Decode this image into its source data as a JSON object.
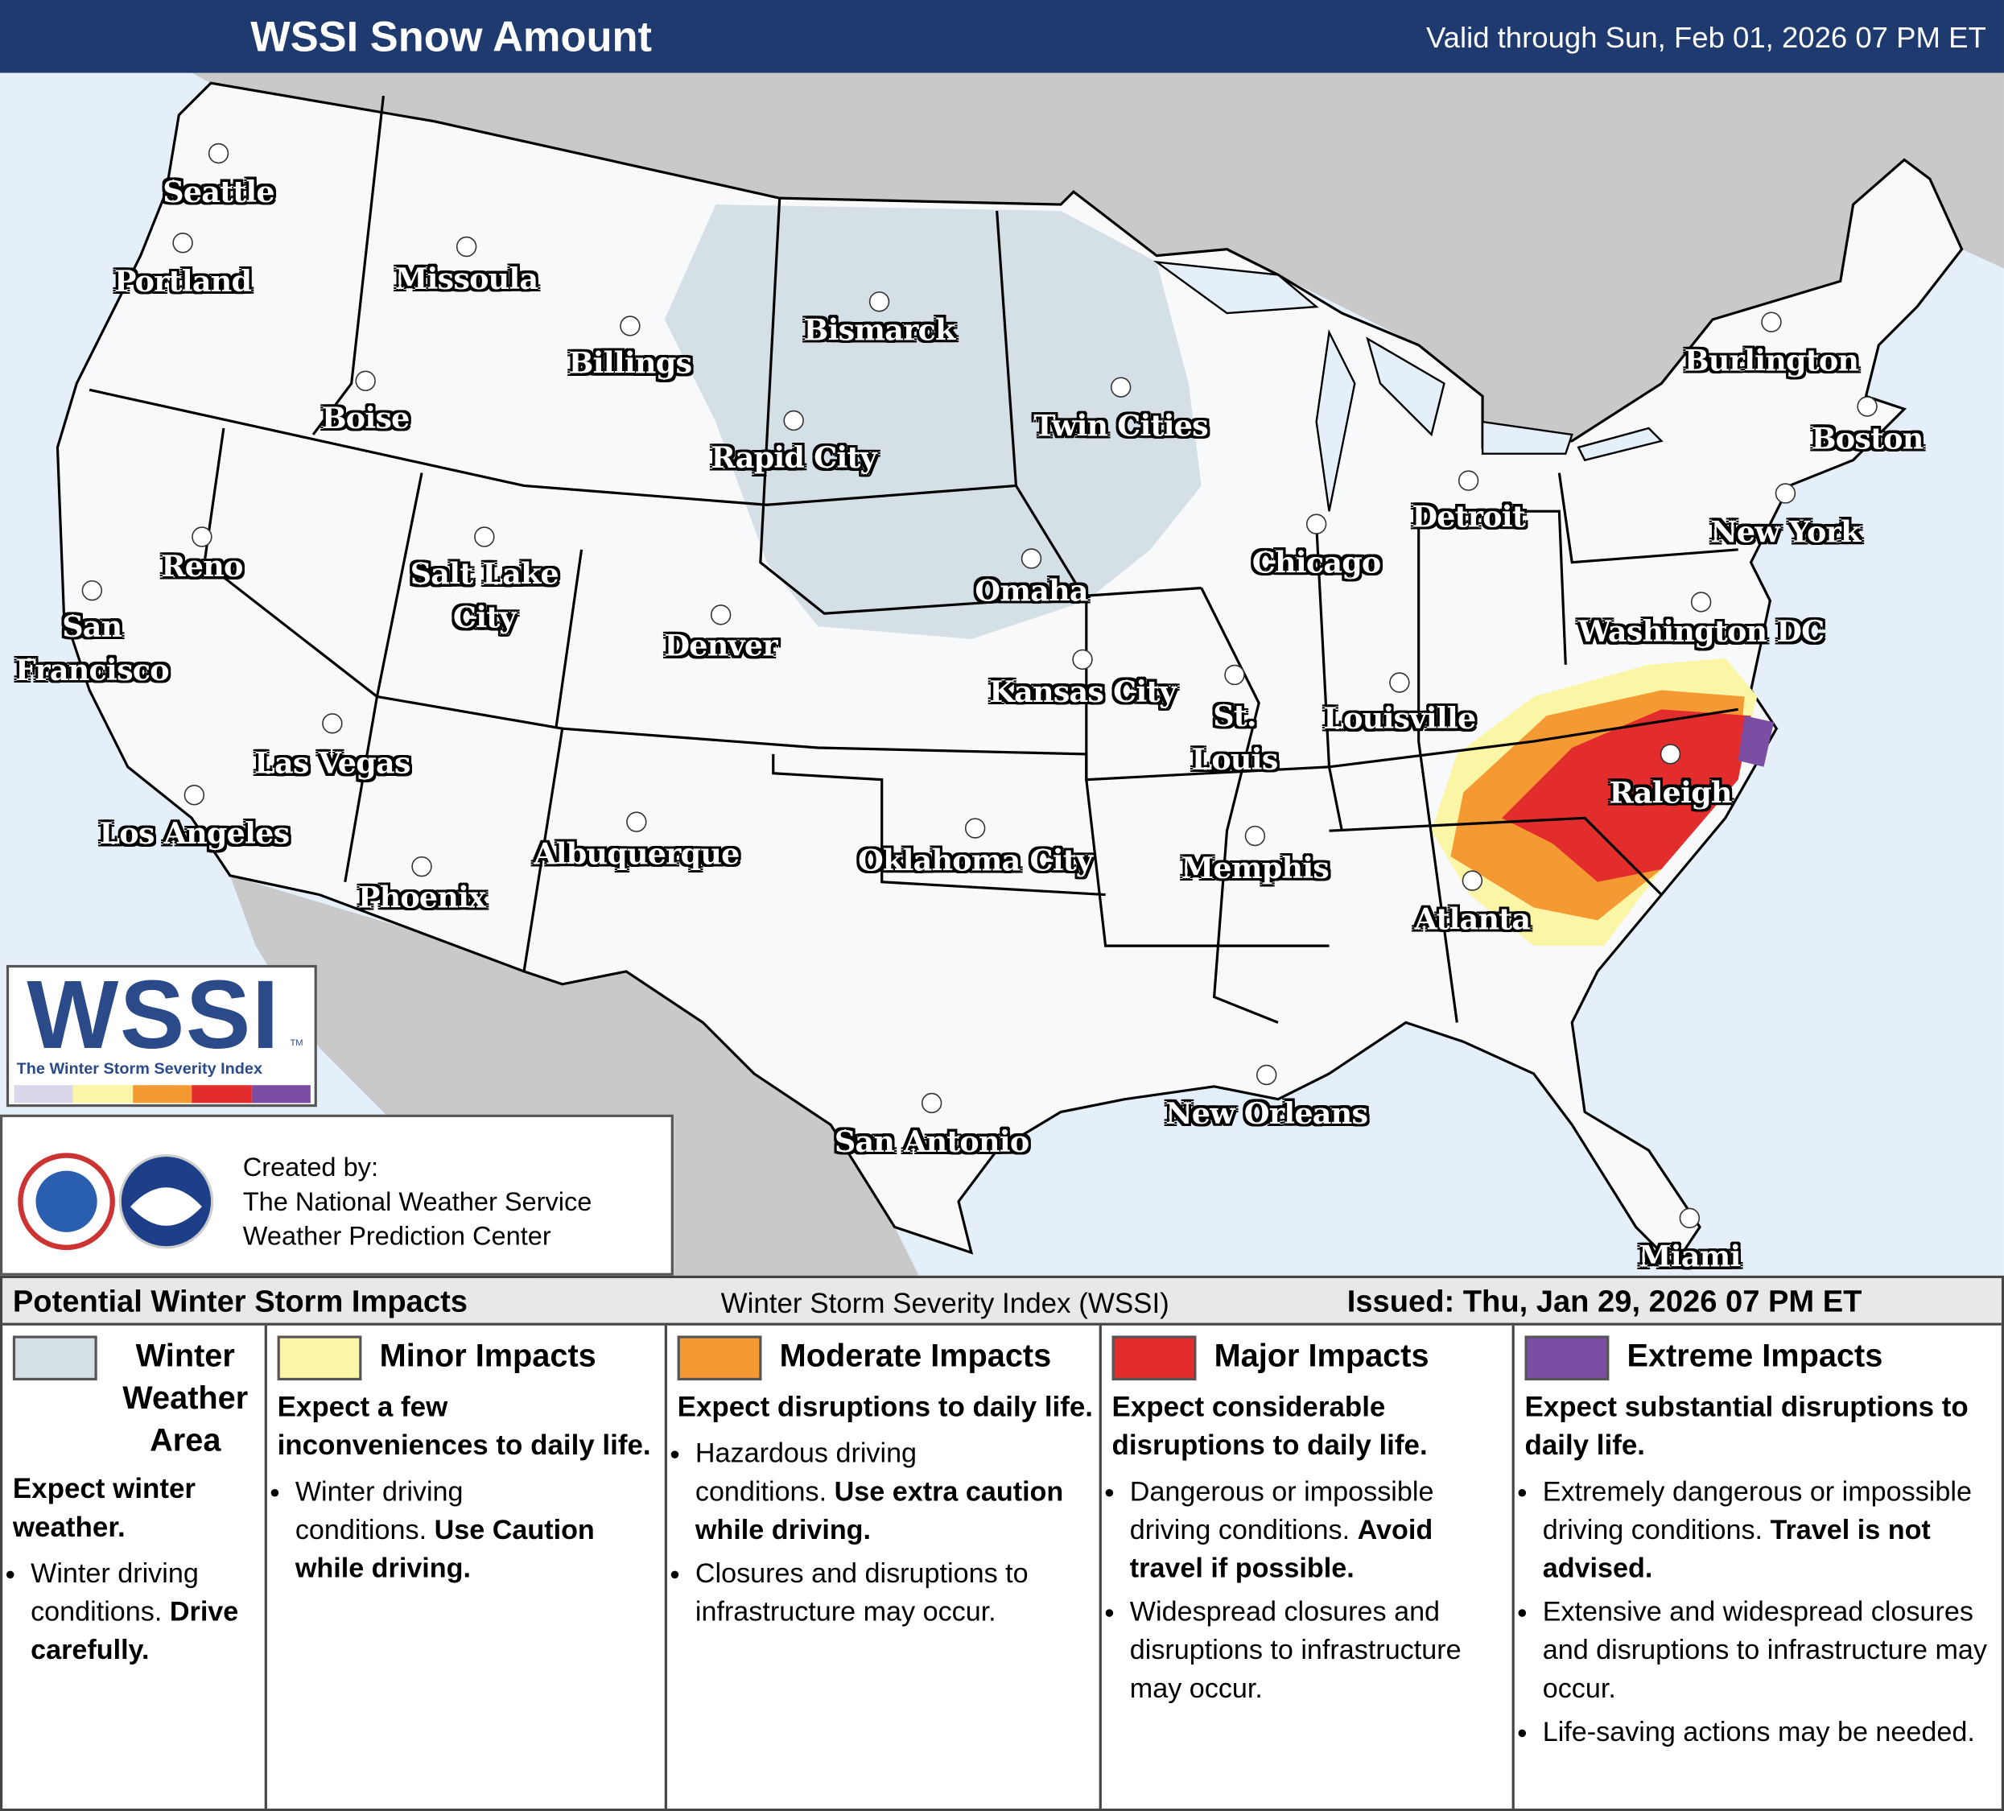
{
  "header": {
    "title": "WSSI Snow Amount",
    "valid": "Valid through Sun, Feb 01, 2026 07 PM ET"
  },
  "map": {
    "cities": [
      {
        "label": "Seattle"
      },
      {
        "label": "Portland"
      },
      {
        "label": "Missoula"
      },
      {
        "label": "Billings"
      },
      {
        "label": "Boise"
      },
      {
        "label": "Bismarck"
      },
      {
        "label": "Rapid City"
      },
      {
        "label": "Twin Cities"
      },
      {
        "label": "Reno"
      },
      {
        "label": "Salt Lake City"
      },
      {
        "label": "Denver"
      },
      {
        "label": "Omaha"
      },
      {
        "label": "Chicago"
      },
      {
        "label": "Detroit"
      },
      {
        "label": "Burlington"
      },
      {
        "label": "Boston"
      },
      {
        "label": "New York"
      },
      {
        "label": "Washington DC"
      },
      {
        "label": "San Francisco"
      },
      {
        "label": "Las Vegas"
      },
      {
        "label": "Los Angeles"
      },
      {
        "label": "Phoenix"
      },
      {
        "label": "Albuquerque"
      },
      {
        "label": "Oklahoma City"
      },
      {
        "label": "Kansas City"
      },
      {
        "label": "St. Louis"
      },
      {
        "label": "Louisville"
      },
      {
        "label": "Memphis"
      },
      {
        "label": "Raleigh"
      },
      {
        "label": "Atlanta"
      },
      {
        "label": "New Orleans"
      },
      {
        "label": "San Antonio"
      },
      {
        "label": "Miami"
      }
    ]
  },
  "logo": {
    "title": "WSSI",
    "tm": "TM",
    "subtitle": "The Winter Storm Severity Index"
  },
  "credits": {
    "lines": [
      "Created by:",
      "The National Weather Service",
      "Weather Prediction Center"
    ]
  },
  "legend": {
    "title": "Potential Winter Storm Impacts",
    "index": "Winter Storm Severity Index (WSSI)",
    "issued": "Issued: Thu, Jan 29, 2026 07 PM ET",
    "levels": [
      {
        "name": "Winter Weather Area",
        "color": "#d5dfe6",
        "summary": "Expect winter weather.",
        "bullets": [
          [
            {
              "text": "Winter driving conditions."
            },
            {
              "text": "Drive carefully.",
              "bold": true
            }
          ]
        ]
      },
      {
        "name": "Minor Impacts",
        "color": "#fbf5a6",
        "summary": "Expect a few inconveniences to daily life.",
        "bullets": [
          [
            {
              "text": "Winter driving conditions."
            },
            {
              "text": "Use Caution while driving.",
              "bold": true
            }
          ]
        ]
      },
      {
        "name": "Moderate Impacts",
        "color": "#f59a32",
        "summary": "Expect disruptions to daily life.",
        "bullets": [
          [
            {
              "text": "Hazardous driving conditions."
            },
            {
              "text": "Use extra caution while driving.",
              "bold": true
            }
          ],
          [
            {
              "text": "Closures and disruptions to infrastructure may occur."
            }
          ]
        ]
      },
      {
        "name": "Major Impacts",
        "color": "#e32d2d",
        "summary": "Expect considerable disruptions to daily life.",
        "bullets": [
          [
            {
              "text": "Dangerous or impossible driving conditions."
            },
            {
              "text": "Avoid travel if possible.",
              "bold": true
            }
          ],
          [
            {
              "text": "Widespread closures and disruptions to infrastructure may occur."
            }
          ]
        ]
      },
      {
        "name": "Extreme Impacts",
        "color": "#7b4ea3",
        "summary": "Expect substantial disruptions to daily life.",
        "bullets": [
          [
            {
              "text": "Extremely dangerous or impossible driving conditions."
            },
            {
              "text": "Travel is not advised.",
              "bold": true
            }
          ],
          [
            {
              "text": "Extensive and widespread closures and disruptions to infrastructure may occur."
            }
          ],
          [
            {
              "text": "Life-saving actions may be needed."
            }
          ]
        ]
      }
    ]
  }
}
